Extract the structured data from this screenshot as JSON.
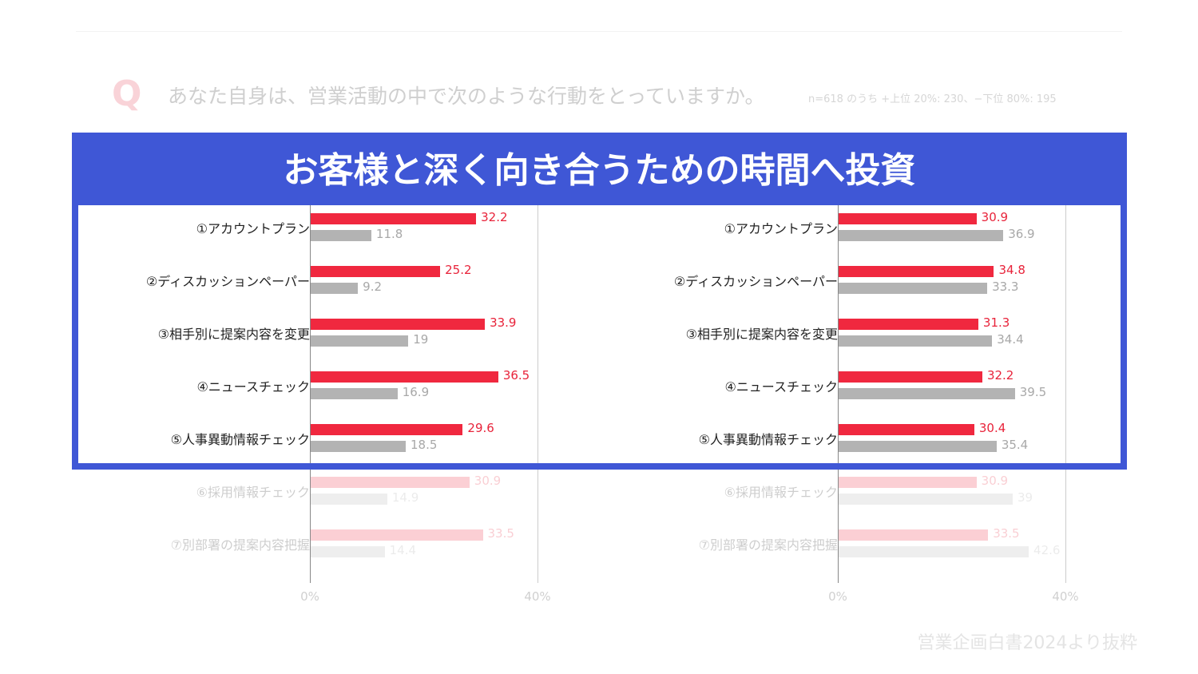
{
  "header": {
    "q_mark": "Q",
    "question": "あなた自身は、営業活動の中で次のような行動をとっていますか。",
    "note": "n=618 のうち +上位 20%: 230、−下位 80%: 195"
  },
  "banner": "お客様と深く向き合うための時間へ投資",
  "source": "営業企画白書2024より抜粋",
  "colors": {
    "top": "#f0283f",
    "bottom": "#b3b3b3",
    "accent": "#3f57d6"
  },
  "chart_data": [
    {
      "type": "bar",
      "orientation": "horizontal",
      "categories": [
        "①アカウントプラン",
        "②ディスカッションペーパー",
        "③相手別に提案内容を変更",
        "④ニュースチェック",
        "⑤人事異動情報チェック",
        "⑥採用情報チェック",
        "⑦別部署の提案内容把握"
      ],
      "series": [
        {
          "name": "上位20%",
          "values": [
            32.2,
            25.2,
            33.9,
            36.5,
            29.6,
            30.9,
            33.5
          ]
        },
        {
          "name": "下位80%",
          "values": [
            11.8,
            9.2,
            19,
            16.9,
            18.5,
            14.9,
            14.4
          ]
        }
      ],
      "labels_top": [
        "32.2",
        "25.2",
        "33.9",
        "36.5",
        "29.6",
        "30.9",
        "33.5"
      ],
      "labels_bottom": [
        "11.8",
        "9.2",
        "19",
        "16.9",
        "18.5",
        "14.9",
        "14.4"
      ],
      "xticks": [
        "0%",
        "40%"
      ],
      "xlim": [
        0,
        44.3
      ]
    },
    {
      "type": "bar",
      "orientation": "horizontal",
      "categories": [
        "①アカウントプラン",
        "②ディスカッションペーパー",
        "③相手別に提案内容を変更",
        "④ニュースチェック",
        "⑤人事異動情報チェック",
        "⑥採用情報チェック",
        "⑦別部署の提案内容把握"
      ],
      "series": [
        {
          "name": "上位20%",
          "values": [
            30.9,
            34.8,
            31.3,
            32.2,
            30.4,
            30.9,
            33.5
          ]
        },
        {
          "name": "下位80%",
          "values": [
            36.9,
            33.3,
            34.4,
            39.5,
            35.4,
            39,
            42.6
          ]
        }
      ],
      "labels_top": [
        "30.9",
        "34.8",
        "31.3",
        "32.2",
        "30.4",
        "30.9",
        "33.5"
      ],
      "labels_bottom": [
        "36.9",
        "33.3",
        "34.4",
        "39.5",
        "35.4",
        "39",
        "42.6"
      ],
      "xticks": [
        "0%",
        "40%"
      ],
      "xlim": [
        0,
        51
      ]
    }
  ]
}
